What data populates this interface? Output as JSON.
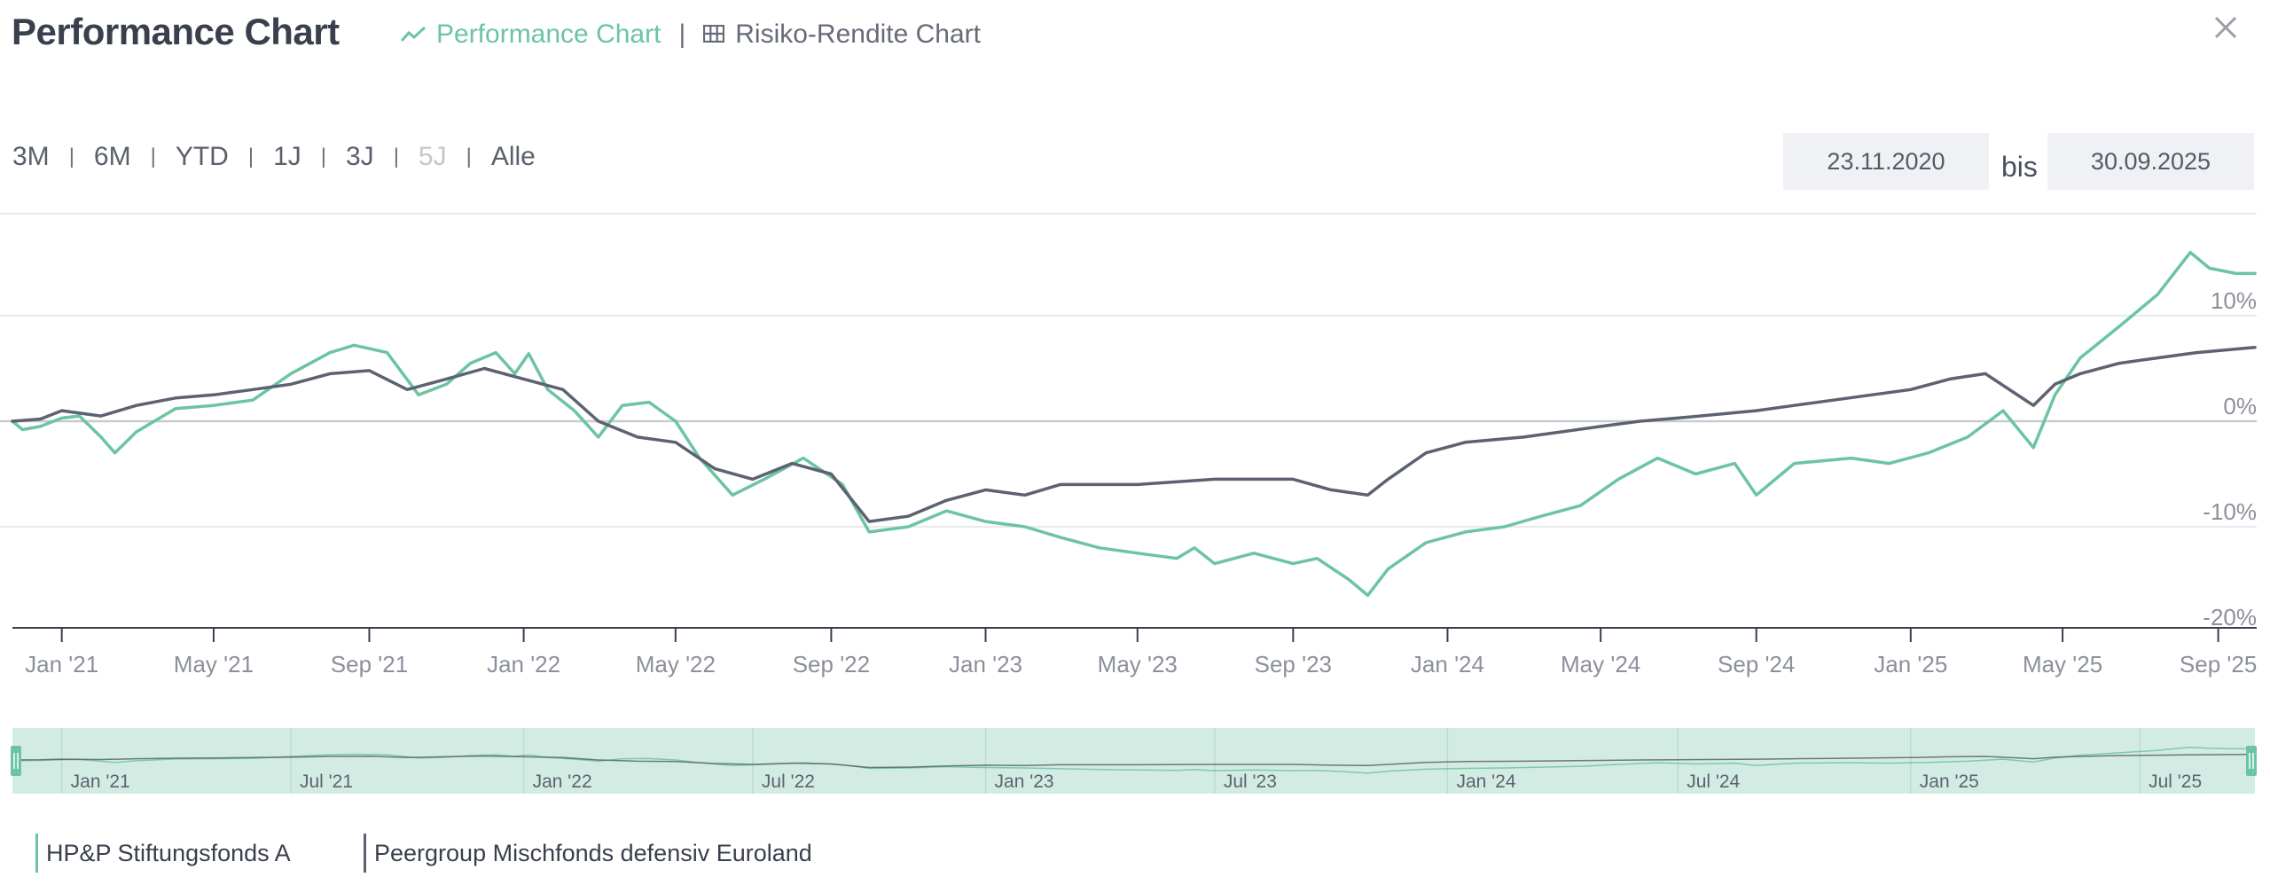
{
  "header": {
    "title": "Performance Chart",
    "tabs": [
      {
        "label": "Performance Chart",
        "icon": "line-chart-icon",
        "active": true
      },
      {
        "label": "Risiko-Rendite Chart",
        "icon": "table-grid-icon",
        "active": false
      }
    ],
    "close_icon": "close-icon"
  },
  "range": {
    "buttons": [
      {
        "label": "3M",
        "enabled": true
      },
      {
        "label": "6M",
        "enabled": true
      },
      {
        "label": "YTD",
        "enabled": true
      },
      {
        "label": "1J",
        "enabled": true
      },
      {
        "label": "3J",
        "enabled": true
      },
      {
        "label": "5J",
        "enabled": false
      },
      {
        "label": "Alle",
        "enabled": true
      }
    ],
    "from": "23.11.2020",
    "bis_label": "bis",
    "to": "30.09.2025"
  },
  "legend": [
    {
      "label": "HP&P Stiftungsfonds A",
      "color": "#6cc4a2"
    },
    {
      "label": "Peergroup Mischfonds defensiv Euroland",
      "color": "#5d6271"
    }
  ],
  "colors": {
    "fund": "#6cc4a2",
    "peer": "#5d6271",
    "accent": "#6cc4a2",
    "navigator_fill": "#d3ece3"
  },
  "chart_data": {
    "type": "line",
    "xlim": [
      "2020-11-23",
      "2025-09-30"
    ],
    "ylim": [
      -20,
      20
    ],
    "y_ticks": [
      10,
      0,
      -10,
      -20
    ],
    "y_tick_labels": [
      "10%",
      "0%",
      "-10%",
      "-20%"
    ],
    "x_ticks": [
      {
        "date": "2021-01-01",
        "label": "Jan '21"
      },
      {
        "date": "2021-05-01",
        "label": "May '21"
      },
      {
        "date": "2021-09-01",
        "label": "Sep '21"
      },
      {
        "date": "2022-01-01",
        "label": "Jan '22"
      },
      {
        "date": "2022-05-01",
        "label": "May '22"
      },
      {
        "date": "2022-09-01",
        "label": "Sep '22"
      },
      {
        "date": "2023-01-01",
        "label": "Jan '23"
      },
      {
        "date": "2023-05-01",
        "label": "May '23"
      },
      {
        "date": "2023-09-01",
        "label": "Sep '23"
      },
      {
        "date": "2024-01-01",
        "label": "Jan '24"
      },
      {
        "date": "2024-05-01",
        "label": "May '24"
      },
      {
        "date": "2024-09-01",
        "label": "Sep '24"
      },
      {
        "date": "2025-01-01",
        "label": "Jan '25"
      },
      {
        "date": "2025-05-01",
        "label": "May '25"
      },
      {
        "date": "2025-09-01",
        "label": "Sep '25"
      }
    ],
    "grid": true,
    "legend_position": "bottom-left",
    "series": [
      {
        "name": "HP&P Stiftungsfonds A",
        "points": [
          [
            "2020-11-23",
            0.0
          ],
          [
            "2020-12-01",
            -0.8
          ],
          [
            "2020-12-15",
            -0.5
          ],
          [
            "2021-01-01",
            0.3
          ],
          [
            "2021-01-15",
            0.5
          ],
          [
            "2021-02-01",
            -1.5
          ],
          [
            "2021-02-12",
            -3.0
          ],
          [
            "2021-03-01",
            -1.0
          ],
          [
            "2021-04-01",
            1.2
          ],
          [
            "2021-05-01",
            1.5
          ],
          [
            "2021-06-01",
            2.0
          ],
          [
            "2021-07-01",
            4.5
          ],
          [
            "2021-08-01",
            6.5
          ],
          [
            "2021-08-20",
            7.2
          ],
          [
            "2021-09-15",
            6.5
          ],
          [
            "2021-10-10",
            2.5
          ],
          [
            "2021-11-01",
            3.5
          ],
          [
            "2021-11-20",
            5.5
          ],
          [
            "2021-12-10",
            6.5
          ],
          [
            "2021-12-25",
            4.5
          ],
          [
            "2022-01-05",
            6.4
          ],
          [
            "2022-01-20",
            3.0
          ],
          [
            "2022-02-10",
            1.0
          ],
          [
            "2022-03-01",
            -1.5
          ],
          [
            "2022-03-20",
            1.5
          ],
          [
            "2022-04-10",
            1.8
          ],
          [
            "2022-05-01",
            0.0
          ],
          [
            "2022-05-20",
            -3.5
          ],
          [
            "2022-06-15",
            -7.0
          ],
          [
            "2022-07-10",
            -5.5
          ],
          [
            "2022-08-10",
            -3.5
          ],
          [
            "2022-09-10",
            -6.0
          ],
          [
            "2022-10-01",
            -10.5
          ],
          [
            "2022-11-01",
            -10.0
          ],
          [
            "2022-12-01",
            -8.5
          ],
          [
            "2023-01-01",
            -9.5
          ],
          [
            "2023-02-01",
            -10.0
          ],
          [
            "2023-03-01",
            -11.0
          ],
          [
            "2023-04-01",
            -12.0
          ],
          [
            "2023-05-01",
            -12.5
          ],
          [
            "2023-06-01",
            -13.0
          ],
          [
            "2023-06-15",
            -12.0
          ],
          [
            "2023-07-01",
            -13.5
          ],
          [
            "2023-08-01",
            -12.5
          ],
          [
            "2023-09-01",
            -13.5
          ],
          [
            "2023-09-20",
            -13.0
          ],
          [
            "2023-10-15",
            -15.0
          ],
          [
            "2023-10-30",
            -16.5
          ],
          [
            "2023-11-15",
            -14.0
          ],
          [
            "2023-12-15",
            -11.5
          ],
          [
            "2024-01-15",
            -10.5
          ],
          [
            "2024-02-15",
            -10.0
          ],
          [
            "2024-03-15",
            -9.0
          ],
          [
            "2024-04-15",
            -8.0
          ],
          [
            "2024-05-15",
            -5.5
          ],
          [
            "2024-06-15",
            -3.5
          ],
          [
            "2024-07-15",
            -5.0
          ],
          [
            "2024-08-15",
            -4.0
          ],
          [
            "2024-09-01",
            -7.0
          ],
          [
            "2024-10-01",
            -4.0
          ],
          [
            "2024-11-15",
            -3.5
          ],
          [
            "2024-12-15",
            -4.0
          ],
          [
            "2025-01-15",
            -3.0
          ],
          [
            "2025-02-15",
            -1.5
          ],
          [
            "2025-03-15",
            1.0
          ],
          [
            "2025-04-08",
            -2.5
          ],
          [
            "2025-04-25",
            2.5
          ],
          [
            "2025-05-15",
            6.0
          ],
          [
            "2025-06-15",
            9.0
          ],
          [
            "2025-07-15",
            12.0
          ],
          [
            "2025-08-10",
            16.0
          ],
          [
            "2025-08-25",
            14.5
          ],
          [
            "2025-09-15",
            14.0
          ],
          [
            "2025-09-30",
            14.0
          ]
        ]
      },
      {
        "name": "Peergroup Mischfonds defensiv Euroland",
        "points": [
          [
            "2020-11-23",
            0.0
          ],
          [
            "2020-12-15",
            0.2
          ],
          [
            "2021-01-01",
            1.0
          ],
          [
            "2021-02-01",
            0.5
          ],
          [
            "2021-03-01",
            1.5
          ],
          [
            "2021-04-01",
            2.2
          ],
          [
            "2021-05-01",
            2.5
          ],
          [
            "2021-06-01",
            3.0
          ],
          [
            "2021-07-01",
            3.5
          ],
          [
            "2021-08-01",
            4.5
          ],
          [
            "2021-09-01",
            4.8
          ],
          [
            "2021-10-01",
            3.0
          ],
          [
            "2021-11-01",
            4.0
          ],
          [
            "2021-12-01",
            5.0
          ],
          [
            "2022-01-01",
            4.0
          ],
          [
            "2022-02-01",
            3.0
          ],
          [
            "2022-03-01",
            0.0
          ],
          [
            "2022-04-01",
            -1.5
          ],
          [
            "2022-05-01",
            -2.0
          ],
          [
            "2022-06-01",
            -4.5
          ],
          [
            "2022-07-01",
            -5.5
          ],
          [
            "2022-08-01",
            -4.0
          ],
          [
            "2022-09-01",
            -5.0
          ],
          [
            "2022-10-01",
            -9.5
          ],
          [
            "2022-11-01",
            -9.0
          ],
          [
            "2022-12-01",
            -7.5
          ],
          [
            "2023-01-01",
            -6.5
          ],
          [
            "2023-02-01",
            -7.0
          ],
          [
            "2023-03-01",
            -6.0
          ],
          [
            "2023-05-01",
            -6.0
          ],
          [
            "2023-07-01",
            -5.5
          ],
          [
            "2023-09-01",
            -5.5
          ],
          [
            "2023-10-01",
            -6.5
          ],
          [
            "2023-10-30",
            -7.0
          ],
          [
            "2023-11-15",
            -5.5
          ],
          [
            "2023-12-15",
            -3.0
          ],
          [
            "2024-01-15",
            -2.0
          ],
          [
            "2024-03-01",
            -1.5
          ],
          [
            "2024-05-01",
            -0.5
          ],
          [
            "2024-06-01",
            0.0
          ],
          [
            "2024-07-01",
            0.3
          ],
          [
            "2024-09-01",
            1.0
          ],
          [
            "2024-10-01",
            1.5
          ],
          [
            "2024-11-01",
            2.0
          ],
          [
            "2024-12-01",
            2.5
          ],
          [
            "2025-01-01",
            3.0
          ],
          [
            "2025-02-01",
            4.0
          ],
          [
            "2025-03-01",
            4.5
          ],
          [
            "2025-04-08",
            1.5
          ],
          [
            "2025-04-25",
            3.5
          ],
          [
            "2025-05-15",
            4.5
          ],
          [
            "2025-06-15",
            5.5
          ],
          [
            "2025-07-15",
            6.0
          ],
          [
            "2025-08-15",
            6.5
          ],
          [
            "2025-09-30",
            7.0
          ]
        ]
      }
    ],
    "navigator": {
      "x_ticks": [
        {
          "date": "2021-01-01",
          "label": "Jan '21"
        },
        {
          "date": "2021-07-01",
          "label": "Jul '21"
        },
        {
          "date": "2022-01-01",
          "label": "Jan '22"
        },
        {
          "date": "2022-07-01",
          "label": "Jul '22"
        },
        {
          "date": "2023-01-01",
          "label": "Jan '23"
        },
        {
          "date": "2023-07-01",
          "label": "Jul '23"
        },
        {
          "date": "2024-01-01",
          "label": "Jan '24"
        },
        {
          "date": "2024-07-01",
          "label": "Jul '24"
        },
        {
          "date": "2025-01-01",
          "label": "Jan '25"
        },
        {
          "date": "2025-07-01",
          "label": "Jul '25"
        }
      ]
    }
  }
}
